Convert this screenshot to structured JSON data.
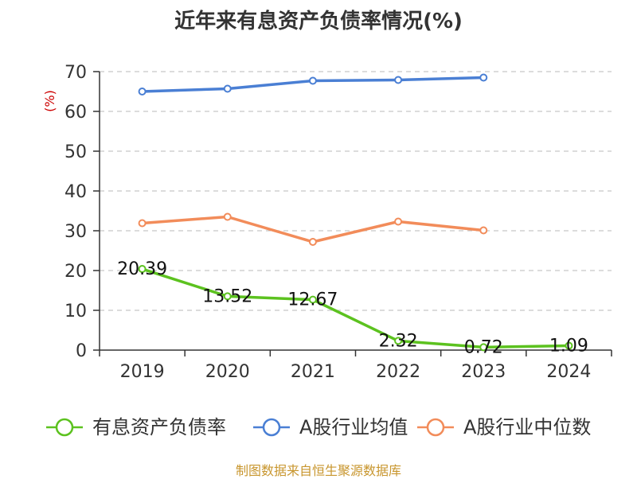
{
  "chart_data": {
    "type": "line",
    "title": "近年来有息资产负债率情况(%)",
    "ylabel": "(%)",
    "categories": [
      "2019",
      "2020",
      "2021",
      "2022",
      "2023",
      "2024"
    ],
    "ylim": [
      0,
      70
    ],
    "yticks": [
      "0",
      "10",
      "20",
      "30",
      "40",
      "50",
      "60",
      "70"
    ],
    "grid": true,
    "legend_position": "bottom",
    "series": [
      {
        "name": "有息资产负债率",
        "color": "#5cc21f",
        "values": [
          20.39,
          13.52,
          12.67,
          2.32,
          0.72,
          1.09
        ],
        "labels": [
          "20.39",
          "13.52",
          "12.67",
          "2.32",
          "0.72",
          "1.09"
        ]
      },
      {
        "name": "A股行业均值",
        "color": "#4a7fd4",
        "values": [
          65.0,
          65.7,
          67.7,
          67.9,
          68.5,
          null
        ]
      },
      {
        "name": "A股行业中位数",
        "color": "#f28c5a",
        "values": [
          31.9,
          33.5,
          27.2,
          32.3,
          30.1,
          null
        ]
      }
    ],
    "source": "制图数据来自恒生聚源数据库",
    "colors": {
      "title": "#333333",
      "ylabel": "#cc0000",
      "source": "#c8962e",
      "grid": "#c8c8c8",
      "axis": "#333333"
    }
  }
}
